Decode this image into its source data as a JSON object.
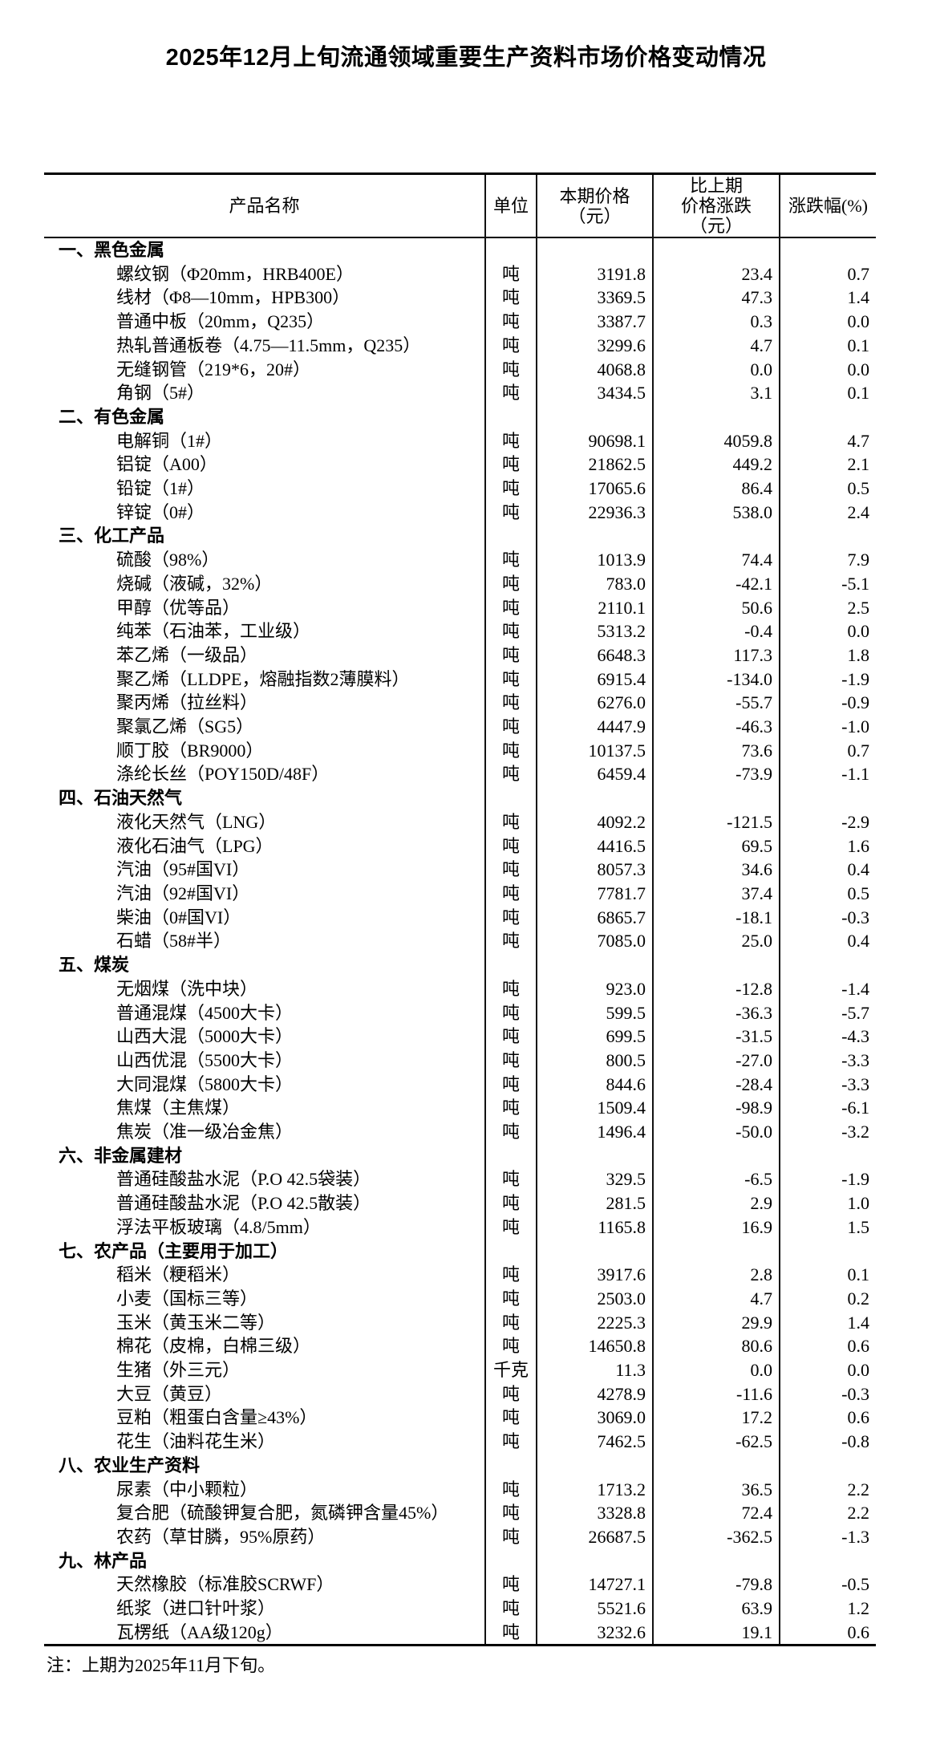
{
  "title": "2025年12月上旬流通领域重要生产资料市场价格变动情况",
  "note": "注：上期为2025年11月下旬。",
  "table": {
    "headers": {
      "product": "产品名称",
      "unit": "单位",
      "price": "本期价格\n（元）",
      "change": "比上期\n价格涨跌\n（元）",
      "pct": "涨跌幅(%)"
    },
    "rows": [
      {
        "type": "category",
        "name": "一、黑色金属",
        "unit": "",
        "price": "",
        "change": "",
        "pct": ""
      },
      {
        "type": "item",
        "name": "螺纹钢（Φ20mm，HRB400E）",
        "unit": "吨",
        "price": "3191.8",
        "change": "23.4",
        "pct": "0.7"
      },
      {
        "type": "item",
        "name": "线材（Φ8—10mm，HPB300）",
        "unit": "吨",
        "price": "3369.5",
        "change": "47.3",
        "pct": "1.4"
      },
      {
        "type": "item",
        "name": "普通中板（20mm，Q235）",
        "unit": "吨",
        "price": "3387.7",
        "change": "0.3",
        "pct": "0.0"
      },
      {
        "type": "item",
        "name": "热轧普通板卷（4.75—11.5mm，Q235）",
        "unit": "吨",
        "price": "3299.6",
        "change": "4.7",
        "pct": "0.1"
      },
      {
        "type": "item",
        "name": "无缝钢管（219*6，20#）",
        "unit": "吨",
        "price": "4068.8",
        "change": "0.0",
        "pct": "0.0"
      },
      {
        "type": "item",
        "name": "角钢（5#）",
        "unit": "吨",
        "price": "3434.5",
        "change": "3.1",
        "pct": "0.1"
      },
      {
        "type": "category",
        "name": "二、有色金属",
        "unit": "",
        "price": "",
        "change": "",
        "pct": ""
      },
      {
        "type": "item",
        "name": "电解铜（1#）",
        "unit": "吨",
        "price": "90698.1",
        "change": "4059.8",
        "pct": "4.7"
      },
      {
        "type": "item",
        "name": "铝锭（A00）",
        "unit": "吨",
        "price": "21862.5",
        "change": "449.2",
        "pct": "2.1"
      },
      {
        "type": "item",
        "name": "铅锭（1#）",
        "unit": "吨",
        "price": "17065.6",
        "change": "86.4",
        "pct": "0.5"
      },
      {
        "type": "item",
        "name": "锌锭（0#）",
        "unit": "吨",
        "price": "22936.3",
        "change": "538.0",
        "pct": "2.4"
      },
      {
        "type": "category",
        "name": "三、化工产品",
        "unit": "",
        "price": "",
        "change": "",
        "pct": ""
      },
      {
        "type": "item",
        "name": "硫酸（98%）",
        "unit": "吨",
        "price": "1013.9",
        "change": "74.4",
        "pct": "7.9"
      },
      {
        "type": "item",
        "name": "烧碱（液碱，32%）",
        "unit": "吨",
        "price": "783.0",
        "change": "-42.1",
        "pct": "-5.1"
      },
      {
        "type": "item",
        "name": "甲醇（优等品）",
        "unit": "吨",
        "price": "2110.1",
        "change": "50.6",
        "pct": "2.5"
      },
      {
        "type": "item",
        "name": "纯苯（石油苯，工业级）",
        "unit": "吨",
        "price": "5313.2",
        "change": "-0.4",
        "pct": "0.0"
      },
      {
        "type": "item",
        "name": "苯乙烯（一级品）",
        "unit": "吨",
        "price": "6648.3",
        "change": "117.3",
        "pct": "1.8"
      },
      {
        "type": "item",
        "name": "聚乙烯（LLDPE，熔融指数2薄膜料）",
        "unit": "吨",
        "price": "6915.4",
        "change": "-134.0",
        "pct": "-1.9"
      },
      {
        "type": "item",
        "name": "聚丙烯（拉丝料）",
        "unit": "吨",
        "price": "6276.0",
        "change": "-55.7",
        "pct": "-0.9"
      },
      {
        "type": "item",
        "name": "聚氯乙烯（SG5）",
        "unit": "吨",
        "price": "4447.9",
        "change": "-46.3",
        "pct": "-1.0"
      },
      {
        "type": "item",
        "name": "顺丁胶（BR9000）",
        "unit": "吨",
        "price": "10137.5",
        "change": "73.6",
        "pct": "0.7"
      },
      {
        "type": "item",
        "name": "涤纶长丝（POY150D/48F）",
        "unit": "吨",
        "price": "6459.4",
        "change": "-73.9",
        "pct": "-1.1"
      },
      {
        "type": "category",
        "name": "四、石油天然气",
        "unit": "",
        "price": "",
        "change": "",
        "pct": ""
      },
      {
        "type": "item",
        "name": "液化天然气（LNG）",
        "unit": "吨",
        "price": "4092.2",
        "change": "-121.5",
        "pct": "-2.9"
      },
      {
        "type": "item",
        "name": "液化石油气（LPG）",
        "unit": "吨",
        "price": "4416.5",
        "change": "69.5",
        "pct": "1.6"
      },
      {
        "type": "item",
        "name": "汽油（95#国VI）",
        "unit": "吨",
        "price": "8057.3",
        "change": "34.6",
        "pct": "0.4"
      },
      {
        "type": "item",
        "name": "汽油（92#国VI）",
        "unit": "吨",
        "price": "7781.7",
        "change": "37.4",
        "pct": "0.5"
      },
      {
        "type": "item",
        "name": "柴油（0#国VI）",
        "unit": "吨",
        "price": "6865.7",
        "change": "-18.1",
        "pct": "-0.3"
      },
      {
        "type": "item",
        "name": "石蜡（58#半）",
        "unit": "吨",
        "price": "7085.0",
        "change": "25.0",
        "pct": "0.4"
      },
      {
        "type": "category",
        "name": "五、煤炭",
        "unit": "",
        "price": "",
        "change": "",
        "pct": ""
      },
      {
        "type": "item",
        "name": "无烟煤（洗中块）",
        "unit": "吨",
        "price": "923.0",
        "change": "-12.8",
        "pct": "-1.4"
      },
      {
        "type": "item",
        "name": "普通混煤（4500大卡）",
        "unit": "吨",
        "price": "599.5",
        "change": "-36.3",
        "pct": "-5.7"
      },
      {
        "type": "item",
        "name": "山西大混（5000大卡）",
        "unit": "吨",
        "price": "699.5",
        "change": "-31.5",
        "pct": "-4.3"
      },
      {
        "type": "item",
        "name": "山西优混（5500大卡）",
        "unit": "吨",
        "price": "800.5",
        "change": "-27.0",
        "pct": "-3.3"
      },
      {
        "type": "item",
        "name": "大同混煤（5800大卡）",
        "unit": "吨",
        "price": "844.6",
        "change": "-28.4",
        "pct": "-3.3"
      },
      {
        "type": "item",
        "name": "焦煤（主焦煤）",
        "unit": "吨",
        "price": "1509.4",
        "change": "-98.9",
        "pct": "-6.1"
      },
      {
        "type": "item",
        "name": "焦炭（准一级冶金焦）",
        "unit": "吨",
        "price": "1496.4",
        "change": "-50.0",
        "pct": "-3.2"
      },
      {
        "type": "category",
        "name": "六、非金属建材",
        "unit": "",
        "price": "",
        "change": "",
        "pct": ""
      },
      {
        "type": "item",
        "name": "普通硅酸盐水泥（P.O 42.5袋装）",
        "unit": "吨",
        "price": "329.5",
        "change": "-6.5",
        "pct": "-1.9"
      },
      {
        "type": "item",
        "name": "普通硅酸盐水泥（P.O 42.5散装）",
        "unit": "吨",
        "price": "281.5",
        "change": "2.9",
        "pct": "1.0"
      },
      {
        "type": "item",
        "name": "浮法平板玻璃（4.8/5mm）",
        "unit": "吨",
        "price": "1165.8",
        "change": "16.9",
        "pct": "1.5"
      },
      {
        "type": "category",
        "name": "七、农产品（主要用于加工）",
        "unit": "",
        "price": "",
        "change": "",
        "pct": ""
      },
      {
        "type": "item",
        "name": "稻米（粳稻米）",
        "unit": "吨",
        "price": "3917.6",
        "change": "2.8",
        "pct": "0.1"
      },
      {
        "type": "item",
        "name": "小麦（国标三等）",
        "unit": "吨",
        "price": "2503.0",
        "change": "4.7",
        "pct": "0.2"
      },
      {
        "type": "item",
        "name": "玉米（黄玉米二等）",
        "unit": "吨",
        "price": "2225.3",
        "change": "29.9",
        "pct": "1.4"
      },
      {
        "type": "item",
        "name": "棉花（皮棉，白棉三级）",
        "unit": "吨",
        "price": "14650.8",
        "change": "80.6",
        "pct": "0.6"
      },
      {
        "type": "item",
        "name": "生猪（外三元）",
        "unit": "千克",
        "price": "11.3",
        "change": "0.0",
        "pct": "0.0"
      },
      {
        "type": "item",
        "name": "大豆（黄豆）",
        "unit": "吨",
        "price": "4278.9",
        "change": "-11.6",
        "pct": "-0.3"
      },
      {
        "type": "item",
        "name": "豆粕（粗蛋白含量≥43%）",
        "unit": "吨",
        "price": "3069.0",
        "change": "17.2",
        "pct": "0.6"
      },
      {
        "type": "item",
        "name": "花生（油料花生米）",
        "unit": "吨",
        "price": "7462.5",
        "change": "-62.5",
        "pct": "-0.8"
      },
      {
        "type": "category",
        "name": "八、农业生产资料",
        "unit": "",
        "price": "",
        "change": "",
        "pct": ""
      },
      {
        "type": "item",
        "name": "尿素（中小颗粒）",
        "unit": "吨",
        "price": "1713.2",
        "change": "36.5",
        "pct": "2.2"
      },
      {
        "type": "item",
        "name": "复合肥（硫酸钾复合肥，氮磷钾含量45%）",
        "unit": "吨",
        "price": "3328.8",
        "change": "72.4",
        "pct": "2.2"
      },
      {
        "type": "item",
        "name": "农药（草甘膦，95%原药）",
        "unit": "吨",
        "price": "26687.5",
        "change": "-362.5",
        "pct": "-1.3"
      },
      {
        "type": "category",
        "name": "九、林产品",
        "unit": "",
        "price": "",
        "change": "",
        "pct": ""
      },
      {
        "type": "item",
        "name": "天然橡胶（标准胶SCRWF）",
        "unit": "吨",
        "price": "14727.1",
        "change": "-79.8",
        "pct": "-0.5"
      },
      {
        "type": "item",
        "name": "纸浆（进口针叶浆）",
        "unit": "吨",
        "price": "5521.6",
        "change": "63.9",
        "pct": "1.2"
      },
      {
        "type": "item",
        "name": "瓦楞纸（AA级120g）",
        "unit": "吨",
        "price": "3232.6",
        "change": "19.1",
        "pct": "0.6"
      }
    ]
  }
}
